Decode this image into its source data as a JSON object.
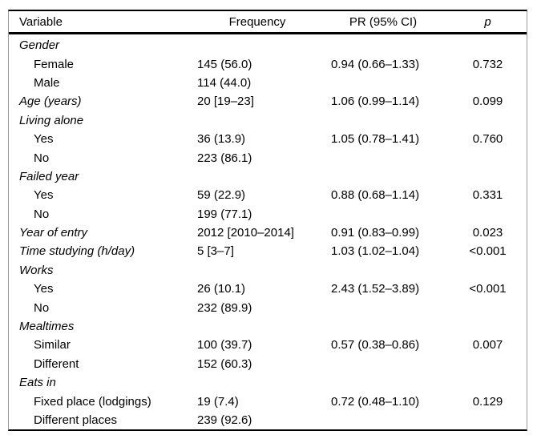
{
  "table": {
    "columns": [
      "Variable",
      "Frequency",
      "PR (95% CI)",
      "p"
    ],
    "rows": [
      {
        "label": "Gender",
        "italic": true,
        "indent": false,
        "frequency": "",
        "pr": "",
        "p": ""
      },
      {
        "label": "Female",
        "italic": false,
        "indent": true,
        "frequency": "145 (56.0)",
        "pr": "0.94 (0.66–1.33)",
        "p": "0.732"
      },
      {
        "label": "Male",
        "italic": false,
        "indent": true,
        "frequency": "114 (44.0)",
        "pr": "",
        "p": ""
      },
      {
        "label": "Age (years)",
        "italic": true,
        "indent": false,
        "frequency": "20 [19–23]",
        "pr": "1.06 (0.99–1.14)",
        "p": "0.099"
      },
      {
        "label": "Living alone",
        "italic": true,
        "indent": false,
        "frequency": "",
        "pr": "",
        "p": ""
      },
      {
        "label": "Yes",
        "italic": false,
        "indent": true,
        "frequency": "36 (13.9)",
        "pr": "1.05 (0.78–1.41)",
        "p": "0.760"
      },
      {
        "label": "No",
        "italic": false,
        "indent": true,
        "frequency": "223 (86.1)",
        "pr": "",
        "p": ""
      },
      {
        "label": "Failed year",
        "italic": true,
        "indent": false,
        "frequency": "",
        "pr": "",
        "p": ""
      },
      {
        "label": "Yes",
        "italic": false,
        "indent": true,
        "frequency": "59 (22.9)",
        "pr": "0.88 (0.68–1.14)",
        "p": "0.331"
      },
      {
        "label": "No",
        "italic": false,
        "indent": true,
        "frequency": "199 (77.1)",
        "pr": "",
        "p": ""
      },
      {
        "label": "Year of entry",
        "italic": true,
        "indent": false,
        "frequency": "2012 [2010–2014]",
        "pr": "0.91 (0.83–0.99)",
        "p": "0.023"
      },
      {
        "label": "Time studying (h/day)",
        "italic": true,
        "indent": false,
        "frequency": "5 [3–7]",
        "pr": "1.03 (1.02–1.04)",
        "p": "<0.001"
      },
      {
        "label": "Works",
        "italic": true,
        "indent": false,
        "frequency": "",
        "pr": "",
        "p": ""
      },
      {
        "label": "Yes",
        "italic": false,
        "indent": true,
        "frequency": "26 (10.1)",
        "pr": "2.43 (1.52–3.89)",
        "p": "<0.001"
      },
      {
        "label": "No",
        "italic": false,
        "indent": true,
        "frequency": "232 (89.9)",
        "pr": "",
        "p": ""
      },
      {
        "label": "Mealtimes",
        "italic": true,
        "indent": false,
        "frequency": "",
        "pr": "",
        "p": ""
      },
      {
        "label": "Similar",
        "italic": false,
        "indent": true,
        "frequency": "100 (39.7)",
        "pr": "0.57 (0.38–0.86)",
        "p": "0.007"
      },
      {
        "label": "Different",
        "italic": false,
        "indent": true,
        "frequency": "152 (60.3)",
        "pr": "",
        "p": ""
      },
      {
        "label": "Eats in",
        "italic": true,
        "indent": false,
        "frequency": "",
        "pr": "",
        "p": ""
      },
      {
        "label": "Fixed place (lodgings)",
        "italic": false,
        "indent": true,
        "frequency": "19 (7.4)",
        "pr": "0.72 (0.48–1.10)",
        "p": "0.129"
      },
      {
        "label": "Different places",
        "italic": false,
        "indent": true,
        "frequency": "239 (92.6)",
        "pr": "",
        "p": ""
      }
    ]
  }
}
